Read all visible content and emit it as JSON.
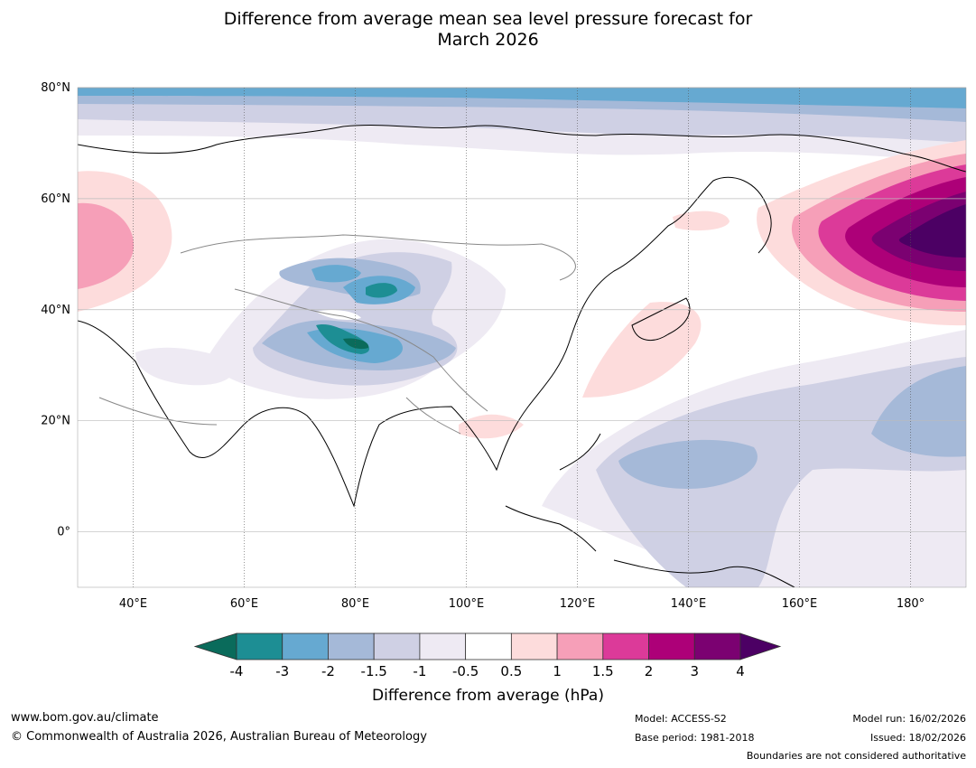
{
  "title": {
    "line1": "Difference from average mean sea level pressure forecast for",
    "line2": "March 2026"
  },
  "map": {
    "lat_labels": [
      "80°N",
      "60°N",
      "40°N",
      "20°N",
      "0°"
    ],
    "lon_labels": [
      "40°E",
      "60°E",
      "80°E",
      "100°E",
      "120°E",
      "140°E",
      "160°E",
      "180°"
    ],
    "lon_range": [
      30,
      190
    ],
    "lat_range": [
      -10,
      80
    ]
  },
  "colorbar": {
    "title": "Difference from average (hPa)",
    "labels": [
      "-4",
      "-3",
      "-2",
      "-1.5",
      "-1",
      "-0.5",
      "0.5",
      "1",
      "1.5",
      "2",
      "3",
      "4"
    ],
    "colors": [
      "#0a6b5b",
      "#1d8e94",
      "#66a9d1",
      "#a5b9d8",
      "#cfd0e4",
      "#eeeaf3",
      "#ffffff",
      "#fddcdc",
      "#f69fb8",
      "#dc3a99",
      "#ad0078",
      "#7b0171",
      "#4c0064"
    ]
  },
  "footer": {
    "url": "www.bom.gov.au/climate",
    "copyright": "© Commonwealth of Australia 2026, Australian Bureau of Meteorology",
    "model": "Model: ACCESS-S2",
    "base_period": "Base period: 1981-2018",
    "model_run": "Model run: 16/02/2026",
    "issued": "Issued: 18/02/2026",
    "disclaimer": "Boundaries are not considered authoritative"
  }
}
